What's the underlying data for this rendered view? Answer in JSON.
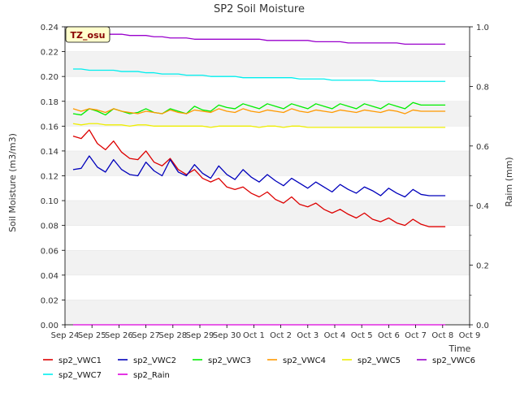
{
  "chart_data": {
    "type": "line",
    "title": "SP2 Soil Moisture",
    "xlabel": "Time",
    "ylabel": "Soil Moisture (m3/m3)",
    "y2label": "Raim (mm)",
    "annotation": "TZ_osu",
    "x_ticks": [
      "Sep 24",
      "Sep 25",
      "Sep 26",
      "Sep 27",
      "Sep 28",
      "Sep 29",
      "Sep 30",
      "Oct 1",
      "Oct 2",
      "Oct 3",
      "Oct 4",
      "Oct 5",
      "Oct 6",
      "Oct 7",
      "Oct 8",
      "Oct 9"
    ],
    "x_range": [
      0,
      15
    ],
    "ylim": [
      0.0,
      0.24
    ],
    "y_ticks": [
      "0.00",
      "0.02",
      "0.04",
      "0.06",
      "0.08",
      "0.10",
      "0.12",
      "0.14",
      "0.16",
      "0.18",
      "0.20",
      "0.22",
      "0.24"
    ],
    "y2lim": [
      0.0,
      1.0
    ],
    "y2_ticks": [
      "0.0",
      "0.2",
      "0.4",
      "0.6",
      "0.8",
      "1.0"
    ],
    "grid": "horizontal bands",
    "legend": "bottom",
    "x": [
      0.3,
      0.6,
      0.9,
      1.2,
      1.5,
      1.8,
      2.1,
      2.4,
      2.7,
      3.0,
      3.3,
      3.6,
      3.9,
      4.2,
      4.5,
      4.8,
      5.1,
      5.4,
      5.7,
      6.0,
      6.3,
      6.6,
      6.9,
      7.2,
      7.5,
      7.8,
      8.1,
      8.4,
      8.7,
      9.0,
      9.3,
      9.6,
      9.9,
      10.2,
      10.5,
      10.8,
      11.1,
      11.4,
      11.7,
      12.0,
      12.3,
      12.6,
      12.9,
      13.2,
      13.5,
      13.8,
      14.1
    ],
    "series": [
      {
        "name": "sp2_VWC1",
        "color": "#dd0000",
        "axis": "left",
        "values": [
          0.152,
          0.15,
          0.157,
          0.146,
          0.141,
          0.148,
          0.139,
          0.134,
          0.133,
          0.14,
          0.131,
          0.128,
          0.134,
          0.125,
          0.121,
          0.125,
          0.118,
          0.115,
          0.118,
          0.111,
          0.109,
          0.111,
          0.106,
          0.103,
          0.107,
          0.101,
          0.098,
          0.103,
          0.097,
          0.095,
          0.098,
          0.093,
          0.09,
          0.093,
          0.089,
          0.086,
          0.09,
          0.085,
          0.083,
          0.086,
          0.082,
          0.08,
          0.085,
          0.081,
          0.079,
          0.079,
          0.079
        ]
      },
      {
        "name": "sp2_VWC2",
        "color": "#0000bb",
        "axis": "left",
        "values": [
          0.125,
          0.126,
          0.136,
          0.127,
          0.123,
          0.133,
          0.125,
          0.121,
          0.12,
          0.131,
          0.124,
          0.12,
          0.133,
          0.123,
          0.12,
          0.129,
          0.122,
          0.118,
          0.128,
          0.121,
          0.117,
          0.125,
          0.119,
          0.115,
          0.121,
          0.116,
          0.112,
          0.118,
          0.114,
          0.11,
          0.115,
          0.111,
          0.107,
          0.113,
          0.109,
          0.106,
          0.111,
          0.108,
          0.104,
          0.11,
          0.106,
          0.103,
          0.109,
          0.105,
          0.104,
          0.104,
          0.104
        ]
      },
      {
        "name": "sp2_VWC3",
        "color": "#00ee00",
        "axis": "left",
        "values": [
          0.17,
          0.169,
          0.174,
          0.172,
          0.169,
          0.174,
          0.172,
          0.17,
          0.171,
          0.174,
          0.171,
          0.17,
          0.174,
          0.172,
          0.17,
          0.176,
          0.173,
          0.172,
          0.177,
          0.175,
          0.174,
          0.178,
          0.176,
          0.174,
          0.178,
          0.176,
          0.174,
          0.178,
          0.176,
          0.174,
          0.178,
          0.176,
          0.174,
          0.178,
          0.176,
          0.174,
          0.178,
          0.176,
          0.174,
          0.178,
          0.176,
          0.174,
          0.179,
          0.177,
          0.177,
          0.177,
          0.177
        ]
      },
      {
        "name": "sp2_VWC4",
        "color": "#ff9900",
        "axis": "left",
        "values": [
          0.174,
          0.172,
          0.174,
          0.173,
          0.171,
          0.174,
          0.172,
          0.171,
          0.17,
          0.172,
          0.171,
          0.17,
          0.173,
          0.171,
          0.17,
          0.173,
          0.172,
          0.171,
          0.174,
          0.172,
          0.171,
          0.174,
          0.172,
          0.171,
          0.173,
          0.172,
          0.171,
          0.174,
          0.172,
          0.171,
          0.173,
          0.172,
          0.171,
          0.173,
          0.172,
          0.171,
          0.173,
          0.172,
          0.171,
          0.173,
          0.172,
          0.17,
          0.173,
          0.172,
          0.172,
          0.172,
          0.172
        ]
      },
      {
        "name": "sp2_VWC5",
        "color": "#eeee00",
        "axis": "left",
        "values": [
          0.162,
          0.161,
          0.162,
          0.162,
          0.161,
          0.161,
          0.161,
          0.16,
          0.161,
          0.161,
          0.16,
          0.16,
          0.16,
          0.16,
          0.16,
          0.16,
          0.16,
          0.159,
          0.16,
          0.16,
          0.16,
          0.16,
          0.16,
          0.159,
          0.16,
          0.16,
          0.159,
          0.16,
          0.16,
          0.159,
          0.159,
          0.159,
          0.159,
          0.159,
          0.159,
          0.159,
          0.159,
          0.159,
          0.159,
          0.159,
          0.159,
          0.159,
          0.159,
          0.159,
          0.159,
          0.159,
          0.159
        ]
      },
      {
        "name": "sp2_VWC6",
        "color": "#9900cc",
        "axis": "left",
        "values": [
          0.236,
          0.236,
          0.235,
          0.235,
          0.234,
          0.234,
          0.234,
          0.233,
          0.233,
          0.233,
          0.232,
          0.232,
          0.231,
          0.231,
          0.231,
          0.23,
          0.23,
          0.23,
          0.23,
          0.23,
          0.23,
          0.23,
          0.23,
          0.23,
          0.229,
          0.229,
          0.229,
          0.229,
          0.229,
          0.229,
          0.228,
          0.228,
          0.228,
          0.228,
          0.227,
          0.227,
          0.227,
          0.227,
          0.227,
          0.227,
          0.227,
          0.226,
          0.226,
          0.226,
          0.226,
          0.226,
          0.226
        ]
      },
      {
        "name": "sp2_VWC7",
        "color": "#00eeee",
        "axis": "left",
        "values": [
          0.206,
          0.206,
          0.205,
          0.205,
          0.205,
          0.205,
          0.204,
          0.204,
          0.204,
          0.203,
          0.203,
          0.202,
          0.202,
          0.202,
          0.201,
          0.201,
          0.201,
          0.2,
          0.2,
          0.2,
          0.2,
          0.199,
          0.199,
          0.199,
          0.199,
          0.199,
          0.199,
          0.199,
          0.198,
          0.198,
          0.198,
          0.198,
          0.197,
          0.197,
          0.197,
          0.197,
          0.197,
          0.197,
          0.196,
          0.196,
          0.196,
          0.196,
          0.196,
          0.196,
          0.196,
          0.196,
          0.196
        ]
      },
      {
        "name": "sp2_Rain",
        "color": "#dd00dd",
        "axis": "right",
        "values": [
          0.0,
          0.0,
          0.0,
          0.0,
          0.0,
          0.0,
          0.0,
          0.0,
          0.0,
          0.0,
          0.0,
          0.0,
          0.0,
          0.0,
          0.0,
          0.0,
          0.0,
          0.0,
          0.0,
          0.0,
          0.0,
          0.0,
          0.0,
          0.0,
          0.0,
          0.0,
          0.0,
          0.0,
          0.0,
          0.0,
          0.0,
          0.0,
          0.0,
          0.0,
          0.0,
          0.0,
          0.0,
          0.0,
          0.0,
          0.0,
          0.0,
          0.0,
          0.0,
          0.0,
          0.0,
          0.0,
          0.0
        ]
      }
    ]
  }
}
